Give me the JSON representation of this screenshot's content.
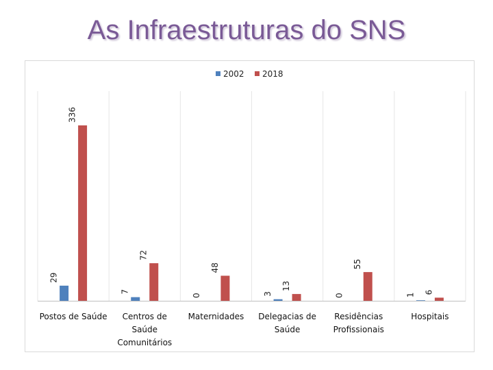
{
  "slide": {
    "title": "As Infraestruturas do SNS"
  },
  "chart_data": {
    "type": "bar",
    "categories": [
      [
        "Postos de Saúde"
      ],
      [
        "Centros de",
        "Saúde",
        "Comunitários"
      ],
      [
        "Maternidades"
      ],
      [
        "Delegacias de",
        "Saúde"
      ],
      [
        "Residências",
        "Profissionais"
      ],
      [
        "Hospitais"
      ]
    ],
    "series": [
      {
        "name": "2002",
        "color": "#4f81bd",
        "values": [
          29,
          7,
          0,
          3,
          0,
          1
        ]
      },
      {
        "name": "2018",
        "color": "#c0504d",
        "values": [
          336,
          72,
          48,
          13,
          55,
          6
        ]
      }
    ],
    "ylim": [
      0,
      336
    ],
    "grid": true,
    "legend": "top-center"
  }
}
